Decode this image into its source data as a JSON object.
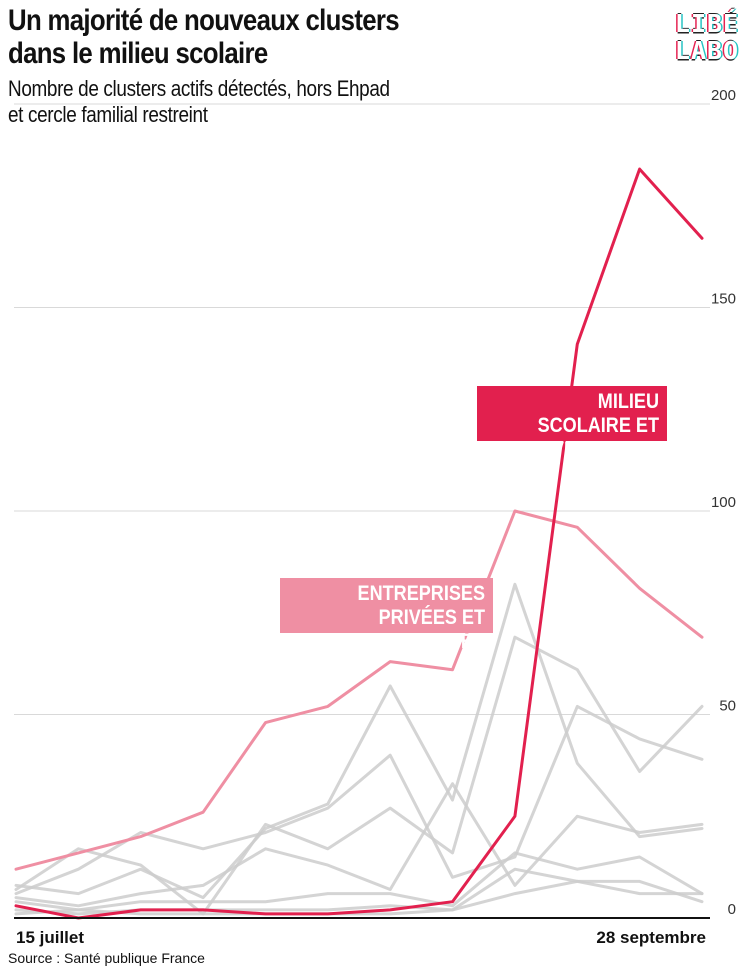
{
  "title": "Un majorité de nouveaux clusters\ndans le milieu scolaire",
  "subtitle": "Nombre de clusters actifs détectés, hors Ehpad\net cercle familial restreint",
  "logo": [
    "LIBÉ",
    "LABO"
  ],
  "source": "Source : Santé publique France",
  "colors": {
    "scolaire": "#e2204e",
    "entreprises": "#ef8fa3",
    "other": "#cccccc",
    "grid": "#d9d9d9"
  },
  "chart_data": {
    "type": "line",
    "title": "Un majorité de nouveaux clusters dans le milieu scolaire",
    "subtitle": "Nombre de clusters actifs détectés, hors Ehpad et cercle familial restreint",
    "x_start_label": "15 juillet",
    "x_end_label": "28 septembre",
    "ylim": [
      0,
      200
    ],
    "yticks": [
      0,
      50,
      100,
      150,
      200
    ],
    "grid": true,
    "annotations": [
      "MILIEU SCOLAIRE ET\nUNIVERSITAIRE",
      "ENTREPRISES\nPRIVÉES ET PUBLIQUES"
    ],
    "series": [
      {
        "name": "MILIEU SCOLAIRE ET UNIVERSITAIRE",
        "color": "#e2204e",
        "values": [
          3,
          0,
          2,
          2,
          1,
          1,
          2,
          4,
          25,
          141,
          184,
          167
        ]
      },
      {
        "name": "ENTREPRISES PRIVÉES ET PUBLIQUES",
        "color": "#ef8fa3",
        "values": [
          12,
          16,
          20,
          26,
          48,
          52,
          63,
          61,
          100,
          96,
          81,
          69
        ]
      },
      {
        "color": "#cccccc",
        "values": [
          8,
          6,
          12,
          5,
          22,
          28,
          57,
          29,
          82,
          38,
          20,
          22
        ]
      },
      {
        "color": "#cccccc",
        "values": [
          7,
          17,
          13,
          1,
          23,
          17,
          27,
          16,
          69,
          61,
          36,
          52
        ]
      },
      {
        "color": "#cccccc",
        "values": [
          6,
          12,
          21,
          17,
          21,
          27,
          40,
          10,
          15,
          52,
          44,
          39
        ]
      },
      {
        "color": "#cccccc",
        "values": [
          5,
          3,
          6,
          8,
          17,
          13,
          7,
          33,
          8,
          25,
          21,
          23
        ]
      },
      {
        "color": "#cccccc",
        "values": [
          4,
          2,
          4,
          4,
          4,
          6,
          6,
          3,
          16,
          12,
          15,
          6
        ]
      },
      {
        "color": "#cccccc",
        "values": [
          2,
          1,
          2,
          2,
          2,
          2,
          3,
          2,
          6,
          9,
          9,
          4
        ]
      },
      {
        "color": "#cccccc",
        "values": [
          1,
          2,
          1,
          1,
          1,
          1,
          1,
          2,
          12,
          9,
          6,
          6
        ]
      }
    ]
  }
}
